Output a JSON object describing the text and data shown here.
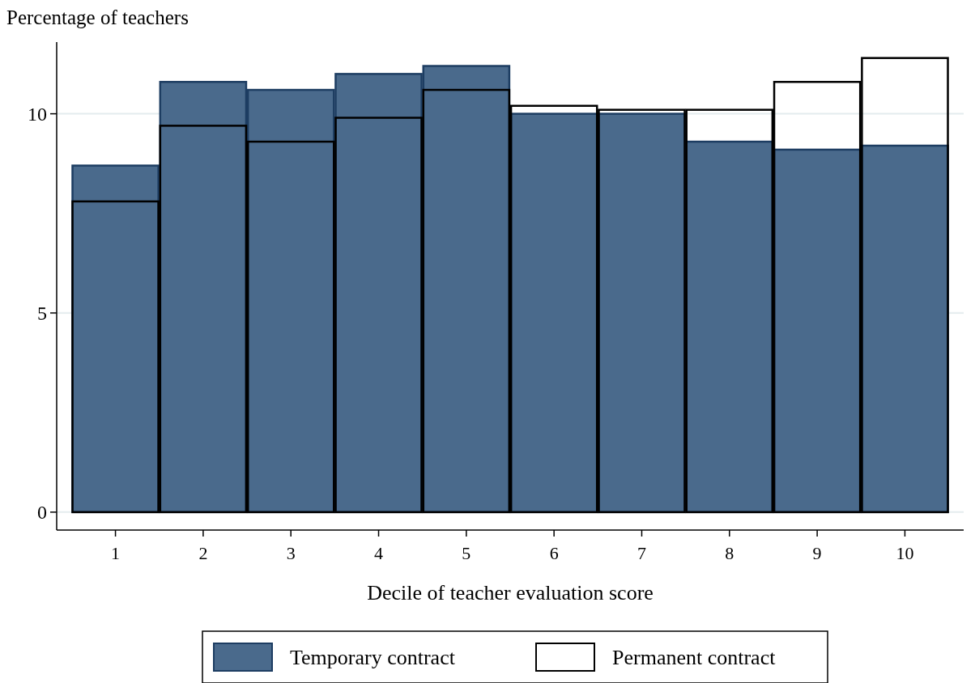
{
  "chart_data": {
    "type": "bar",
    "ylabel": "Percentage of teachers",
    "xlabel": "Decile of teacher evaluation score",
    "categories": [
      "1",
      "2",
      "3",
      "4",
      "5",
      "6",
      "7",
      "8",
      "9",
      "10"
    ],
    "series": [
      {
        "name": "Temporary contract",
        "color": "#4a6a8c",
        "values": [
          8.7,
          10.8,
          10.6,
          11.0,
          11.2,
          10.0,
          10.0,
          9.3,
          9.1,
          9.2
        ]
      },
      {
        "name": "Permanent contract",
        "color": "#000000",
        "values": [
          7.8,
          9.7,
          9.3,
          9.9,
          10.6,
          10.2,
          10.1,
          10.1,
          10.8,
          11.4
        ]
      }
    ],
    "ylim": [
      -0.45,
      11.8
    ],
    "yticks": [
      0,
      5,
      10
    ],
    "grid": "y",
    "legend": "bottom"
  }
}
